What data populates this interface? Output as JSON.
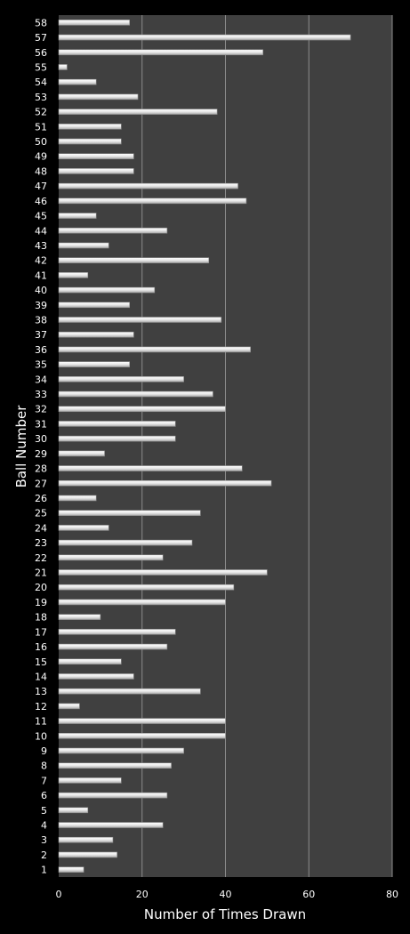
{
  "chart_data": {
    "type": "bar",
    "orientation": "horizontal",
    "xlabel": "Number of Times Drawn",
    "ylabel": "Ball Number",
    "xlim": [
      0,
      80
    ],
    "xticks": [
      0,
      20,
      40,
      60,
      80
    ],
    "grid": "vertical",
    "colors": {
      "background": "#000000",
      "plot_area": "#404040",
      "bar": "#e6e6e6",
      "bar_edge": "#8a8a8a",
      "gridline": "#8c8c8c",
      "text": "#ffffff"
    },
    "categories": [
      "1",
      "2",
      "3",
      "4",
      "5",
      "6",
      "7",
      "8",
      "9",
      "10",
      "11",
      "12",
      "13",
      "14",
      "15",
      "16",
      "17",
      "18",
      "19",
      "20",
      "21",
      "22",
      "23",
      "24",
      "25",
      "26",
      "27",
      "28",
      "29",
      "30",
      "31",
      "32",
      "33",
      "34",
      "35",
      "36",
      "37",
      "38",
      "39",
      "40",
      "41",
      "42",
      "43",
      "44",
      "45",
      "46",
      "47",
      "48",
      "49",
      "50",
      "51",
      "52",
      "53",
      "54",
      "55",
      "56",
      "57",
      "58"
    ],
    "values": [
      6,
      14,
      13,
      25,
      7,
      26,
      15,
      27,
      30,
      40,
      40,
      5,
      34,
      18,
      15,
      26,
      28,
      10,
      40,
      42,
      50,
      25,
      32,
      12,
      34,
      9,
      51,
      44,
      11,
      28,
      28,
      40,
      37,
      30,
      17,
      46,
      18,
      39,
      17,
      23,
      7,
      36,
      12,
      26,
      9,
      45,
      43,
      18,
      18,
      15,
      15,
      38,
      19,
      9,
      2,
      49,
      70,
      17
    ]
  }
}
